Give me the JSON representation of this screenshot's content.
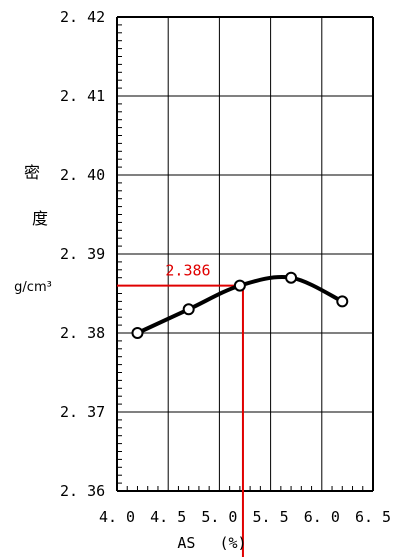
{
  "chart_data": {
    "type": "line",
    "x": [
      4.2,
      4.7,
      5.2,
      5.7,
      6.2
    ],
    "y": [
      2.38,
      2.383,
      2.386,
      2.387,
      2.384
    ],
    "xlim": [
      4.0,
      6.5
    ],
    "ylim": [
      2.36,
      2.42
    ],
    "x_ticks": [
      "4.0",
      "4.5",
      "5.0",
      "5.5",
      "6.0",
      "6.5"
    ],
    "y_ticks": [
      "2.36",
      "2.37",
      "2.38",
      "2.39",
      "2.40",
      "2.41",
      "2.42"
    ],
    "xlabel": "AS　 (%)",
    "ylabel_chars": [
      "密",
      "度"
    ],
    "yunit": "g/cm³",
    "grid": true,
    "annotation": {
      "label": "2.386",
      "x": 5.23,
      "y": 2.386,
      "color": "#e00000"
    },
    "line_color": "#000000"
  }
}
